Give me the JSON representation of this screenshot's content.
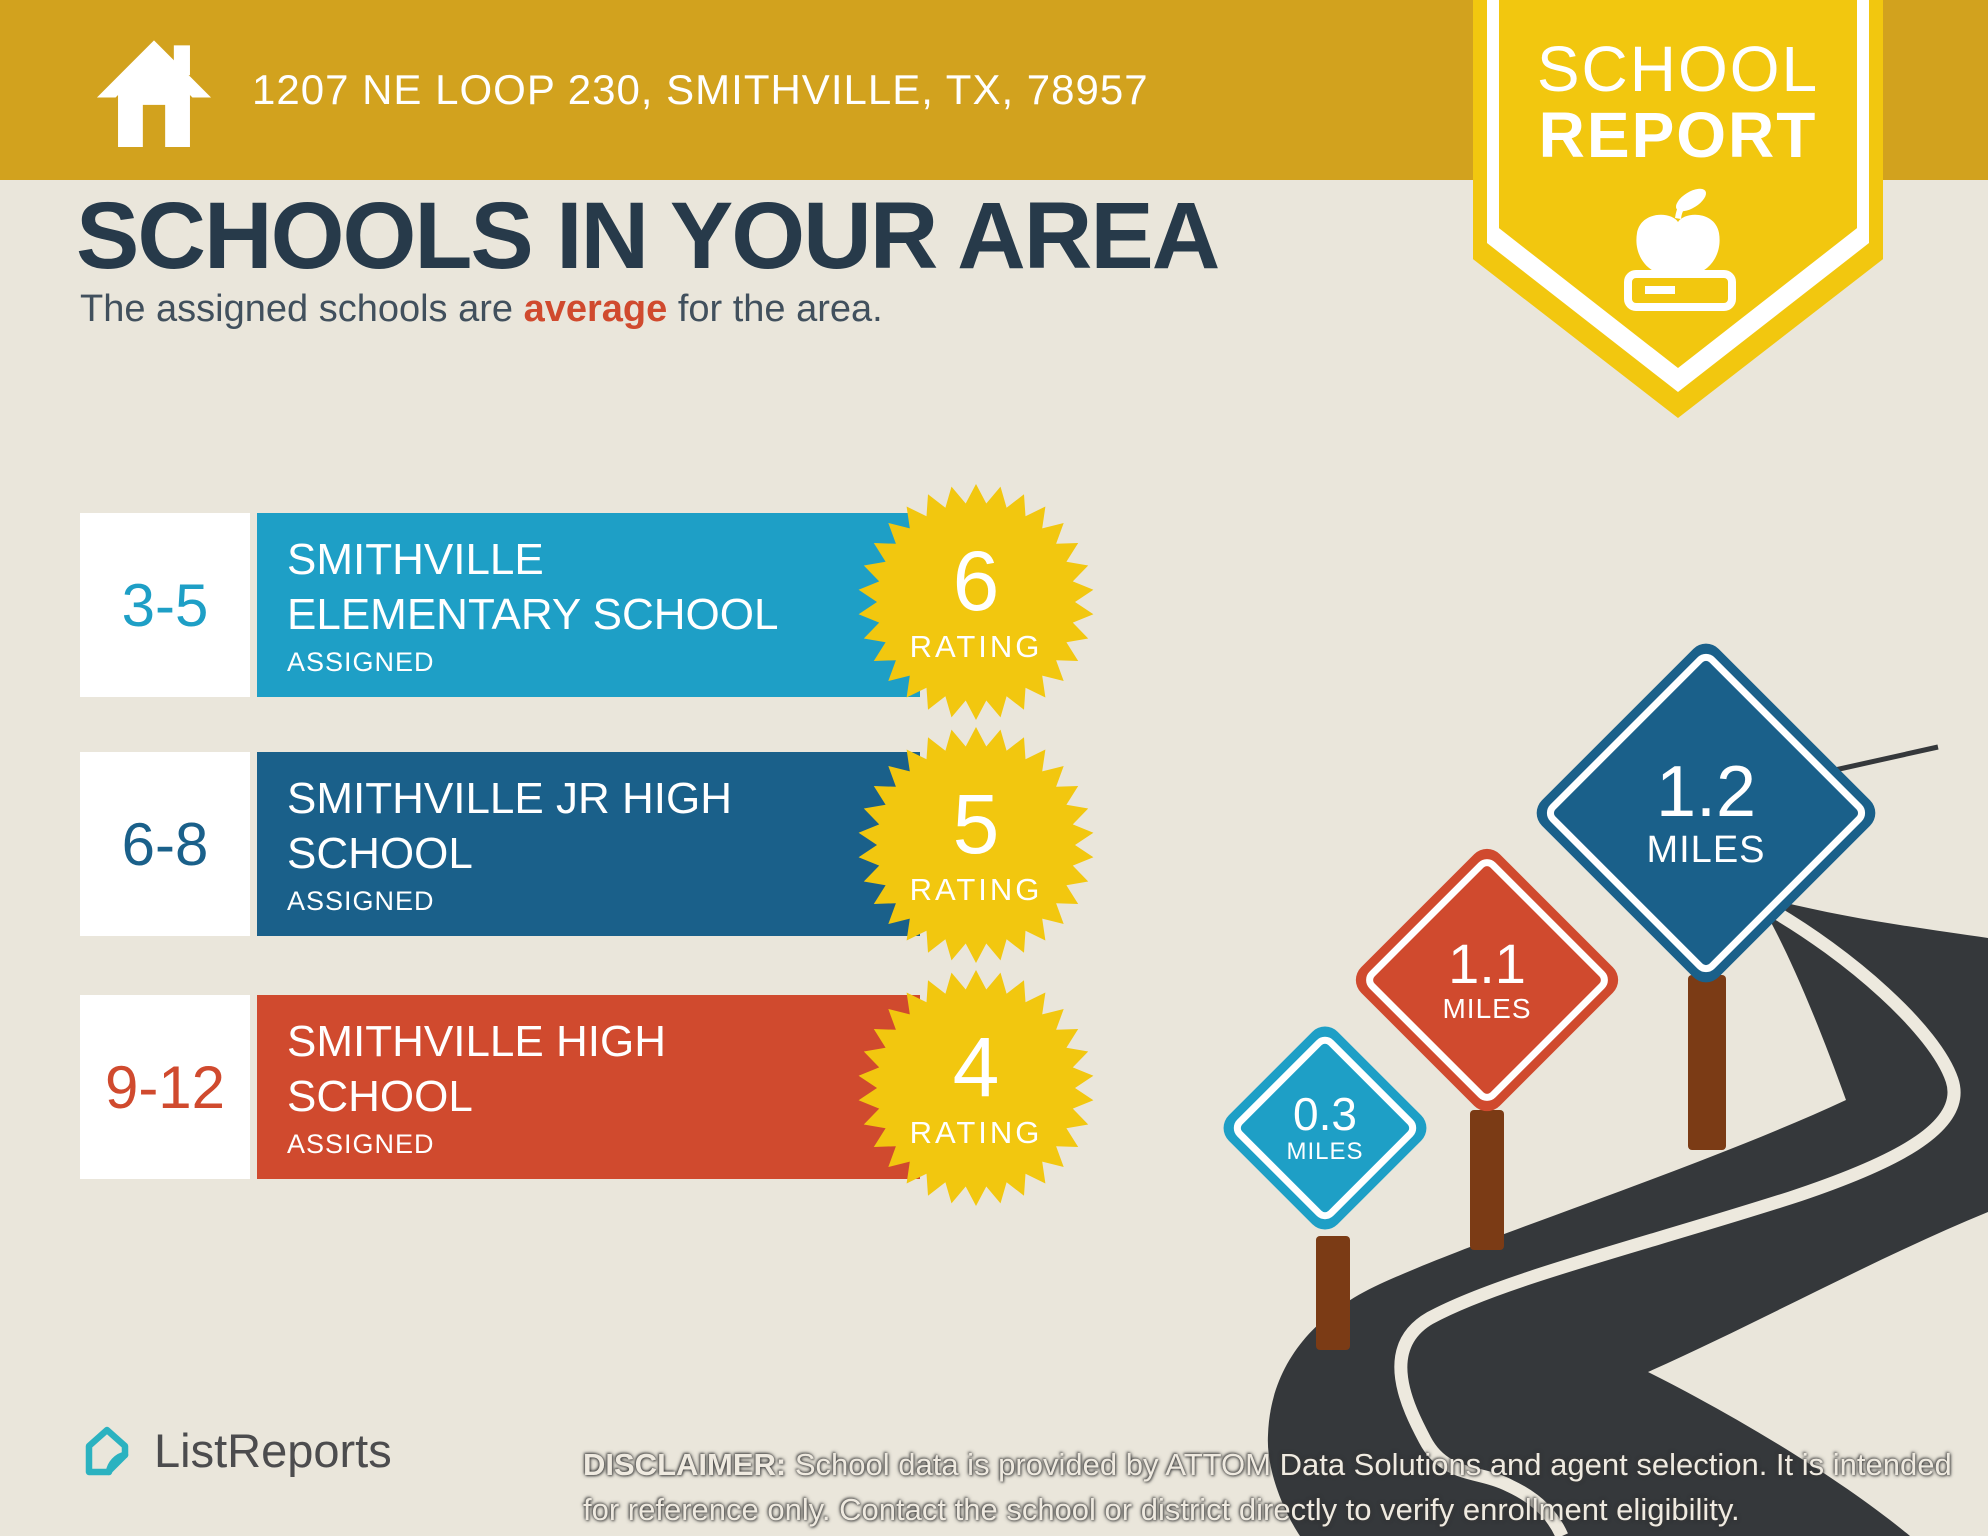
{
  "header": {
    "address": "1207 NE LOOP 230, SMITHVILLE, TX, 78957",
    "badge": {
      "line1": "SCHOOL",
      "line2": "REPORT"
    }
  },
  "main": {
    "title": "SCHOOLS IN YOUR AREA",
    "subtitle": {
      "prefix": "The assigned schools are ",
      "highlight": "average",
      "suffix": " for the area."
    }
  },
  "schools": [
    {
      "grades": "3-5",
      "name_line1": "SMITHVILLE",
      "name_line2": "ELEMENTARY SCHOOL",
      "status": "ASSIGNED",
      "rating": "6",
      "rating_label": "RATING",
      "color": "#1E9FC6"
    },
    {
      "grades": "6-8",
      "name_line1": "SMITHVILLE JR HIGH",
      "name_line2": "SCHOOL",
      "status": "ASSIGNED",
      "rating": "5",
      "rating_label": "RATING",
      "color": "#1A608A"
    },
    {
      "grades": "9-12",
      "name_line1": "SMITHVILLE HIGH",
      "name_line2": "SCHOOL",
      "status": "ASSIGNED",
      "rating": "4",
      "rating_label": "RATING",
      "color": "#D04A2E"
    }
  ],
  "distance_signs": [
    {
      "value": "0.3",
      "unit": "MILES",
      "color": "#28A4C9"
    },
    {
      "value": "1.1",
      "unit": "MILES",
      "color": "#D04A2E"
    },
    {
      "value": "1.2",
      "unit": "MILES",
      "color": "#1A608A"
    }
  ],
  "footer": {
    "brand": "ListReports",
    "disclaimer_label": "DISCLAIMER:",
    "disclaimer_line1": " School data is provided by ATTOM Data Solutions and agent selection. It is intended",
    "disclaimer_line2": "for reference only. Contact the school or district directly to verify enrollment eligibility."
  },
  "colors": {
    "header_gold": "#D2A21E",
    "badge_yellow": "#F2C70F",
    "background_beige": "#EAE6DB",
    "teal": "#1E9FC6",
    "dark_blue": "#1A608A",
    "red_orange": "#D04A2E",
    "title_navy": "#273A4A",
    "road_charcoal": "#35383B",
    "post_brown": "#7B3B15",
    "logo_teal": "#2BB2C0"
  }
}
